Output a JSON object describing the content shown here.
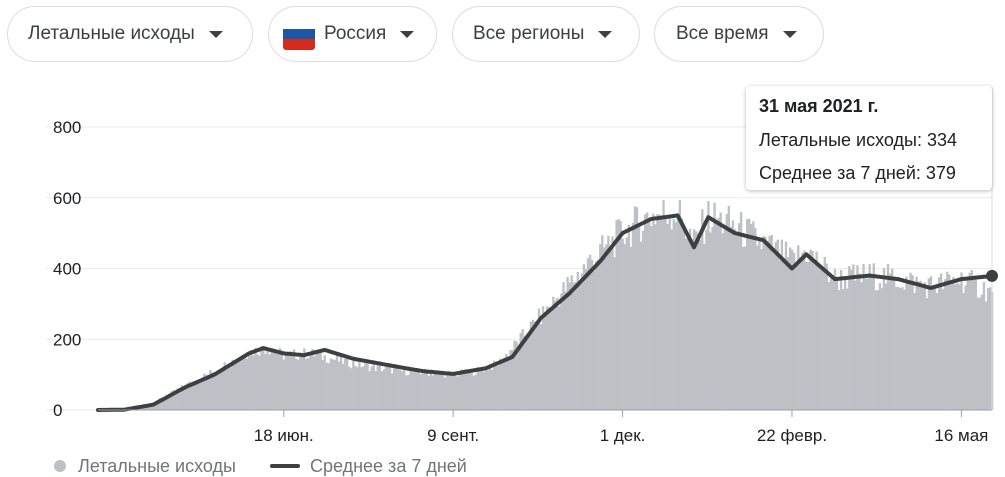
{
  "filters": [
    {
      "label": "Летальные исходы"
    },
    {
      "label": "Россия",
      "flag": [
        "#ffffff",
        "#1c57a5",
        "#d52b1e"
      ]
    },
    {
      "label": "Все регионы"
    },
    {
      "label": "Все время"
    }
  ],
  "tooltip": {
    "date": "31 мая 2021 г.",
    "daily": "Летальные исходы: 334",
    "avg": "Среднее за 7 дней: 379"
  },
  "legend": {
    "daily": "Летальные исходы",
    "avg": "Среднее за 7 дней"
  },
  "colors": {
    "bars": "#bdc1c6",
    "line": "#3c4043",
    "grid": "#e8eaed",
    "axis_text": "#202124"
  },
  "chart_data": {
    "type": "bar",
    "title": "",
    "xlabel": "",
    "ylabel": "",
    "ylim": [
      0,
      800
    ],
    "y_ticks": [
      0,
      200,
      400,
      600,
      800
    ],
    "x_ticks": [
      "18 июн.",
      "9 сент.",
      "1 дек.",
      "22 февр.",
      "16 мая"
    ],
    "grid": true,
    "legend_position": "bottom-left",
    "date_range": [
      "2020-03-19",
      "2021-05-31"
    ],
    "series": [
      {
        "name": "Летальные исходы",
        "render": "bar",
        "anchors": [
          [
            "2020-03-19",
            0
          ],
          [
            "2020-04-01",
            2
          ],
          [
            "2020-04-15",
            20
          ],
          [
            "2020-05-01",
            70
          ],
          [
            "2020-05-15",
            110
          ],
          [
            "2020-06-01",
            165
          ],
          [
            "2020-06-10",
            175
          ],
          [
            "2020-06-18",
            155
          ],
          [
            "2020-07-01",
            160
          ],
          [
            "2020-07-15",
            140
          ],
          [
            "2020-08-01",
            120
          ],
          [
            "2020-08-15",
            110
          ],
          [
            "2020-09-01",
            105
          ],
          [
            "2020-09-09",
            100
          ],
          [
            "2020-09-20",
            110
          ],
          [
            "2020-10-01",
            130
          ],
          [
            "2020-10-15",
            220
          ],
          [
            "2020-11-01",
            330
          ],
          [
            "2020-11-15",
            420
          ],
          [
            "2020-12-01",
            500
          ],
          [
            "2020-12-15",
            550
          ],
          [
            "2020-12-28",
            560
          ],
          [
            "2021-01-05",
            470
          ],
          [
            "2021-01-12",
            545
          ],
          [
            "2021-01-25",
            520
          ],
          [
            "2021-02-08",
            470
          ],
          [
            "2021-02-22",
            420
          ],
          [
            "2021-03-01",
            450
          ],
          [
            "2021-03-15",
            370
          ],
          [
            "2021-04-01",
            380
          ],
          [
            "2021-04-15",
            370
          ],
          [
            "2021-05-01",
            350
          ],
          [
            "2021-05-16",
            370
          ],
          [
            "2021-05-31",
            334
          ]
        ]
      },
      {
        "name": "Среднее за 7 дней",
        "render": "line",
        "anchors": [
          [
            "2020-03-19",
            0
          ],
          [
            "2020-04-01",
            1
          ],
          [
            "2020-04-15",
            15
          ],
          [
            "2020-05-01",
            65
          ],
          [
            "2020-05-15",
            100
          ],
          [
            "2020-06-01",
            160
          ],
          [
            "2020-06-08",
            175
          ],
          [
            "2020-06-18",
            160
          ],
          [
            "2020-06-28",
            155
          ],
          [
            "2020-07-08",
            170
          ],
          [
            "2020-07-22",
            145
          ],
          [
            "2020-08-10",
            125
          ],
          [
            "2020-08-25",
            110
          ],
          [
            "2020-09-09",
            102
          ],
          [
            "2020-09-25",
            118
          ],
          [
            "2020-10-08",
            150
          ],
          [
            "2020-10-22",
            260
          ],
          [
            "2020-11-05",
            330
          ],
          [
            "2020-11-20",
            420
          ],
          [
            "2020-12-01",
            500
          ],
          [
            "2020-12-15",
            540
          ],
          [
            "2020-12-28",
            550
          ],
          [
            "2021-01-05",
            460
          ],
          [
            "2021-01-12",
            545
          ],
          [
            "2021-01-25",
            500
          ],
          [
            "2021-02-08",
            480
          ],
          [
            "2021-02-22",
            400
          ],
          [
            "2021-03-01",
            440
          ],
          [
            "2021-03-15",
            370
          ],
          [
            "2021-04-01",
            380
          ],
          [
            "2021-04-15",
            370
          ],
          [
            "2021-05-01",
            345
          ],
          [
            "2021-05-16",
            370
          ],
          [
            "2021-05-31",
            379
          ]
        ]
      }
    ]
  }
}
